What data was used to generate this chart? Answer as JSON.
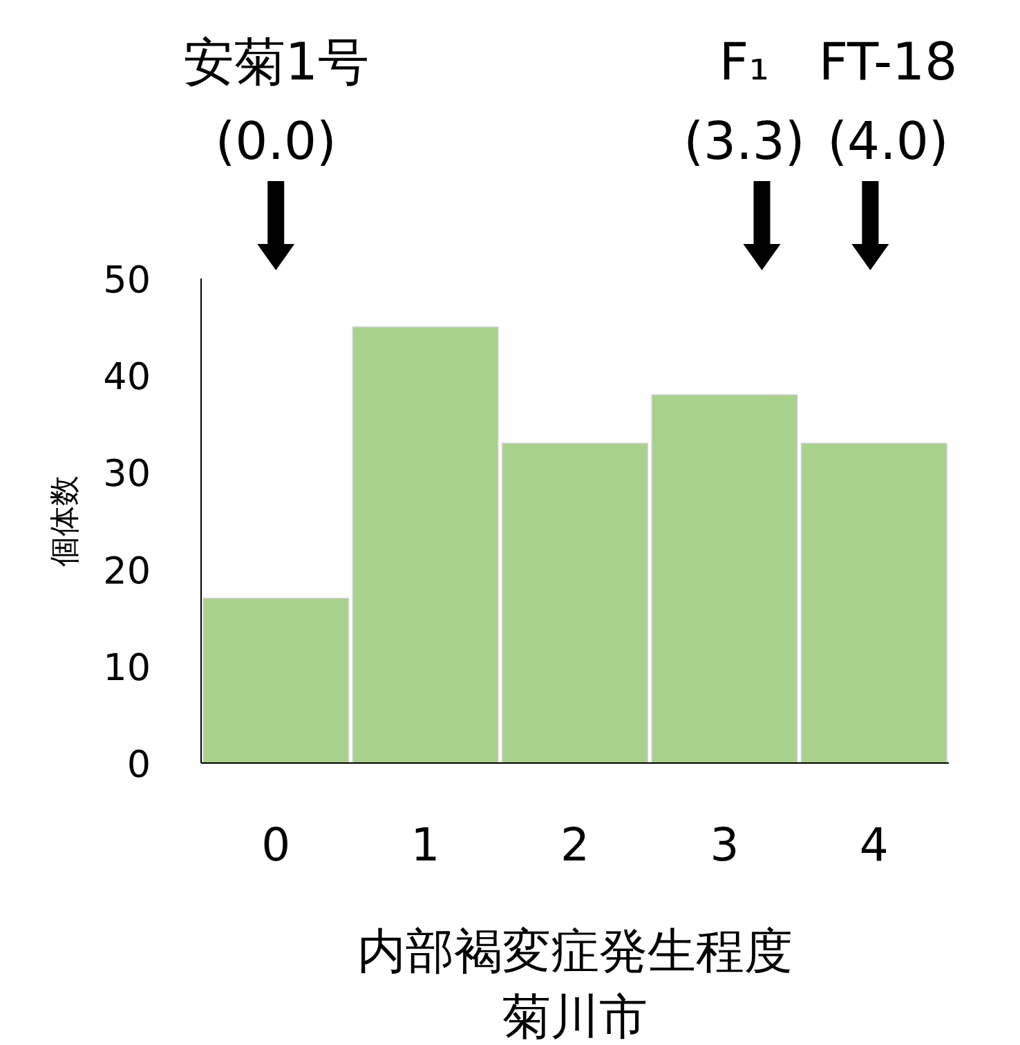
{
  "chart_data": {
    "type": "bar",
    "title": "菊川市",
    "xlabel": "内部褐変症発生程度",
    "ylabel": "個体数",
    "x": [
      0,
      1,
      2,
      3,
      4
    ],
    "values": [
      17,
      45,
      33,
      38,
      33
    ],
    "color": "#a9d18e",
    "xlim": [
      -0.5,
      4.5
    ],
    "xticks": [
      0,
      1,
      2,
      3,
      4
    ],
    "ylim": [
      0,
      50
    ],
    "yticks": [
      0,
      10,
      20,
      30,
      40,
      50
    ],
    "grid": false,
    "annotations": [
      "安菊1号\n(0.0)",
      "F₁\n(3.3)",
      "FT-18\n(4.0)"
    ]
  }
}
